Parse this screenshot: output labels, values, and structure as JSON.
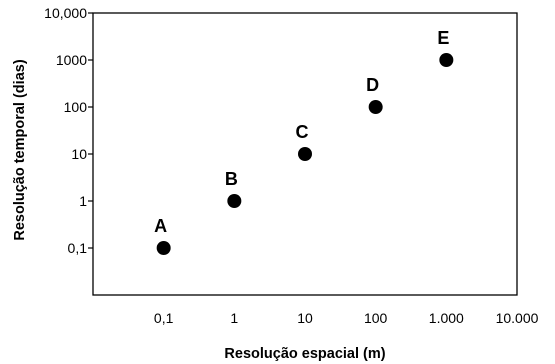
{
  "chart_data": {
    "type": "scatter",
    "xlabel": "Resolução espacial (m)",
    "ylabel": "Resolução temporal (dias)",
    "x_scale": "log",
    "y_scale": "log",
    "xlim": [
      0.01,
      10000
    ],
    "ylim": [
      0.01,
      10000
    ],
    "x_ticks": [
      {
        "value": 0.1,
        "label": "0,1"
      },
      {
        "value": 1,
        "label": "1"
      },
      {
        "value": 10,
        "label": "10"
      },
      {
        "value": 100,
        "label": "100"
      },
      {
        "value": 1000,
        "label": "1.000"
      },
      {
        "value": 10000,
        "label": "10.000"
      }
    ],
    "y_ticks": [
      {
        "value": 0.1,
        "label": "0,1"
      },
      {
        "value": 1,
        "label": "1"
      },
      {
        "value": 10,
        "label": "10"
      },
      {
        "value": 100,
        "label": "100"
      },
      {
        "value": 1000,
        "label": "1000"
      },
      {
        "value": 10000,
        "label": "10,000"
      }
    ],
    "grid": false,
    "points": [
      {
        "label": "A",
        "x": 0.1,
        "y": 0.1
      },
      {
        "label": "B",
        "x": 1,
        "y": 1
      },
      {
        "label": "C",
        "x": 10,
        "y": 10
      },
      {
        "label": "D",
        "x": 100,
        "y": 100
      },
      {
        "label": "E",
        "x": 1000,
        "y": 1000
      }
    ],
    "marker_color": "#000000"
  }
}
